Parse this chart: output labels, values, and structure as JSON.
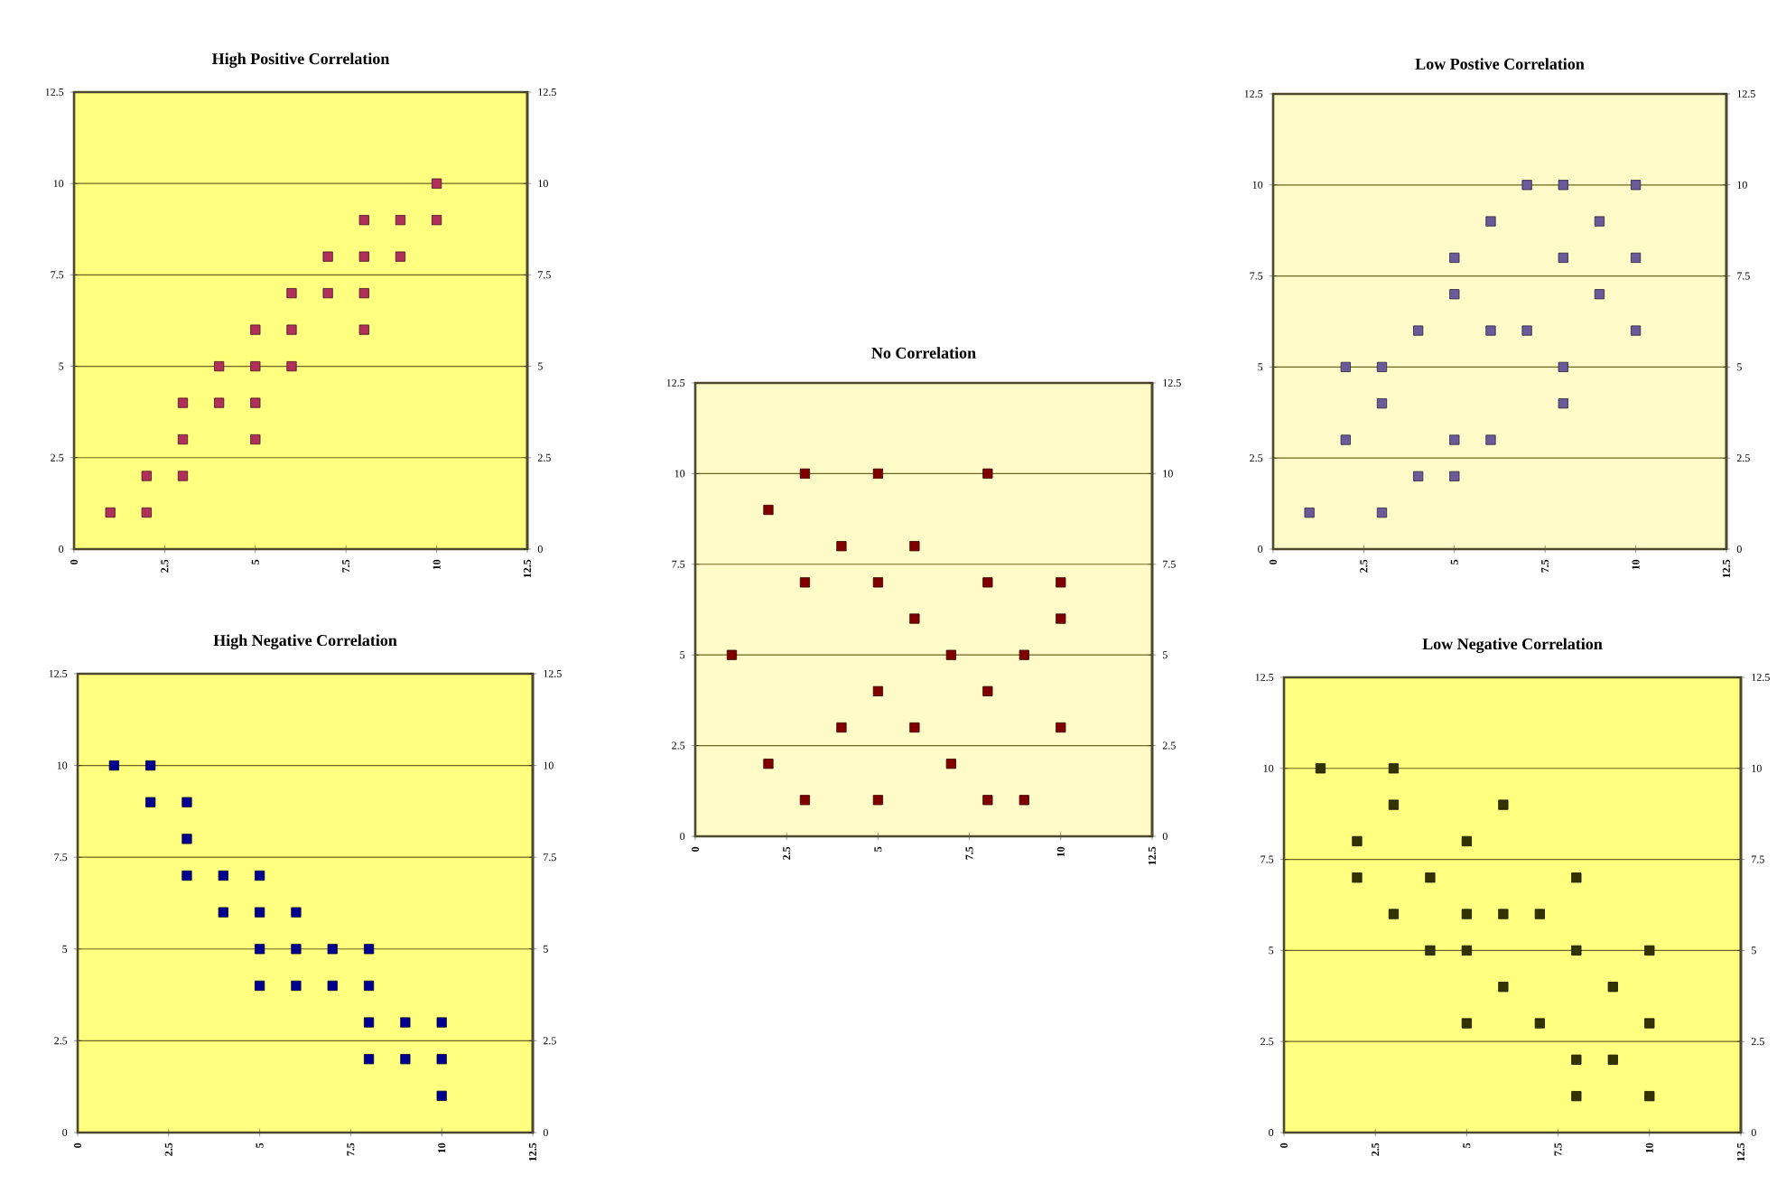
{
  "chart_data": [
    {
      "type": "scatter",
      "title": "High Positive Correlation",
      "color": "#b0305a",
      "marker": "square",
      "grid": "y",
      "xlim": [
        0,
        12.5
      ],
      "xticks": [
        0,
        2.5,
        5,
        7.5,
        10,
        12.5
      ],
      "ylim": [
        0,
        12.5
      ],
      "yticks": [
        0,
        2.5,
        5,
        7.5,
        10,
        12.5
      ],
      "y2lim": [
        0,
        12.5
      ],
      "y2ticks": [
        0,
        2.5,
        5,
        7.5,
        10,
        12.5
      ],
      "x": [
        1,
        2,
        2,
        3,
        3,
        3,
        4,
        4,
        5,
        5,
        5,
        5,
        6,
        6,
        6,
        7,
        7,
        8,
        8,
        8,
        8,
        9,
        9,
        10,
        10
      ],
      "values": [
        1,
        1,
        2,
        2,
        3,
        4,
        4,
        5,
        3,
        4,
        5,
        6,
        5,
        6,
        7,
        7,
        8,
        6,
        7,
        8,
        9,
        8,
        9,
        9,
        10
      ]
    },
    {
      "type": "scatter",
      "title": "Low Postive Correlation",
      "color": "#6a5a9a",
      "marker": "square",
      "grid": "y",
      "xlim": [
        0,
        12.5
      ],
      "xticks": [
        0,
        2.5,
        5,
        7.5,
        10,
        12.5
      ],
      "ylim": [
        0,
        12.5
      ],
      "yticks": [
        0,
        2.5,
        5,
        7.5,
        10,
        12.5
      ],
      "y2lim": [
        0,
        12.5
      ],
      "y2ticks": [
        0,
        2.5,
        5,
        7.5,
        10,
        12.5
      ],
      "x": [
        1,
        2,
        2,
        3,
        3,
        3,
        4,
        4,
        5,
        5,
        5,
        5,
        6,
        6,
        6,
        7,
        7,
        8,
        8,
        8,
        8,
        9,
        9,
        10,
        10,
        10
      ],
      "values": [
        1,
        3,
        5,
        5,
        4,
        1,
        6,
        2,
        8,
        7,
        3,
        2,
        9,
        6,
        3,
        10,
        6,
        10,
        8,
        5,
        4,
        9,
        7,
        10,
        8,
        6
      ]
    },
    {
      "type": "scatter",
      "title": "No Correlation",
      "color": "#800000",
      "marker": "square",
      "grid": "y",
      "xlim": [
        0,
        12.5
      ],
      "xticks": [
        0,
        2.5,
        5,
        7.5,
        10,
        12.5
      ],
      "ylim": [
        0,
        12.5
      ],
      "yticks": [
        0,
        2.5,
        5,
        7.5,
        10,
        12.5
      ],
      "y2lim": [
        0,
        12.5
      ],
      "y2ticks": [
        0,
        2.5,
        5,
        7.5,
        10,
        12.5
      ],
      "x": [
        1,
        2,
        2,
        3,
        3,
        3,
        4,
        4,
        5,
        5,
        5,
        5,
        6,
        6,
        6,
        7,
        7,
        8,
        8,
        8,
        8,
        9,
        9,
        10,
        10,
        10
      ],
      "values": [
        5,
        9,
        2,
        10,
        7,
        1,
        8,
        3,
        10,
        7,
        4,
        1,
        8,
        6,
        3,
        5,
        2,
        10,
        7,
        4,
        1,
        5,
        1,
        7,
        6,
        3
      ]
    },
    {
      "type": "scatter",
      "title": "High Negative Correlation",
      "color": "#000090",
      "marker": "square",
      "grid": "y",
      "xlim": [
        0,
        12.5
      ],
      "xticks": [
        0,
        2.5,
        5,
        7.5,
        10,
        12.5
      ],
      "ylim": [
        0,
        12.5
      ],
      "yticks": [
        0,
        2.5,
        5,
        7.5,
        10,
        12.5
      ],
      "y2lim": [
        0,
        12.5
      ],
      "y2ticks": [
        0,
        2.5,
        5,
        7.5,
        10,
        12.5
      ],
      "x": [
        1,
        2,
        2,
        3,
        3,
        3,
        4,
        4,
        5,
        5,
        5,
        5,
        6,
        6,
        6,
        7,
        7,
        8,
        8,
        8,
        8,
        9,
        9,
        10,
        10,
        10
      ],
      "values": [
        10,
        10,
        9,
        9,
        8,
        7,
        7,
        6,
        7,
        6,
        5,
        4,
        6,
        5,
        4,
        5,
        4,
        5,
        4,
        3,
        2,
        3,
        2,
        3,
        2,
        1
      ]
    },
    {
      "type": "scatter",
      "title": "Low Negative Correlation",
      "color": "#333300",
      "marker": "square",
      "grid": "y",
      "xlim": [
        0,
        12.5
      ],
      "xticks": [
        0,
        2.5,
        5,
        7.5,
        10,
        12.5
      ],
      "ylim": [
        0,
        12.5
      ],
      "yticks": [
        0,
        2.5,
        5,
        7.5,
        10,
        12.5
      ],
      "y2lim": [
        0,
        12.5
      ],
      "y2ticks": [
        0,
        2.5,
        5,
        7.5,
        10,
        12.5
      ],
      "x": [
        1,
        2,
        2,
        3,
        3,
        3,
        4,
        4,
        5,
        5,
        5,
        5,
        6,
        6,
        6,
        7,
        7,
        8,
        8,
        8,
        8,
        9,
        9,
        10,
        10,
        10
      ],
      "values": [
        10,
        8,
        7,
        10,
        9,
        6,
        7,
        5,
        8,
        6,
        5,
        3,
        9,
        6,
        4,
        6,
        3,
        7,
        5,
        2,
        1,
        4,
        2,
        5,
        3,
        1
      ]
    }
  ]
}
